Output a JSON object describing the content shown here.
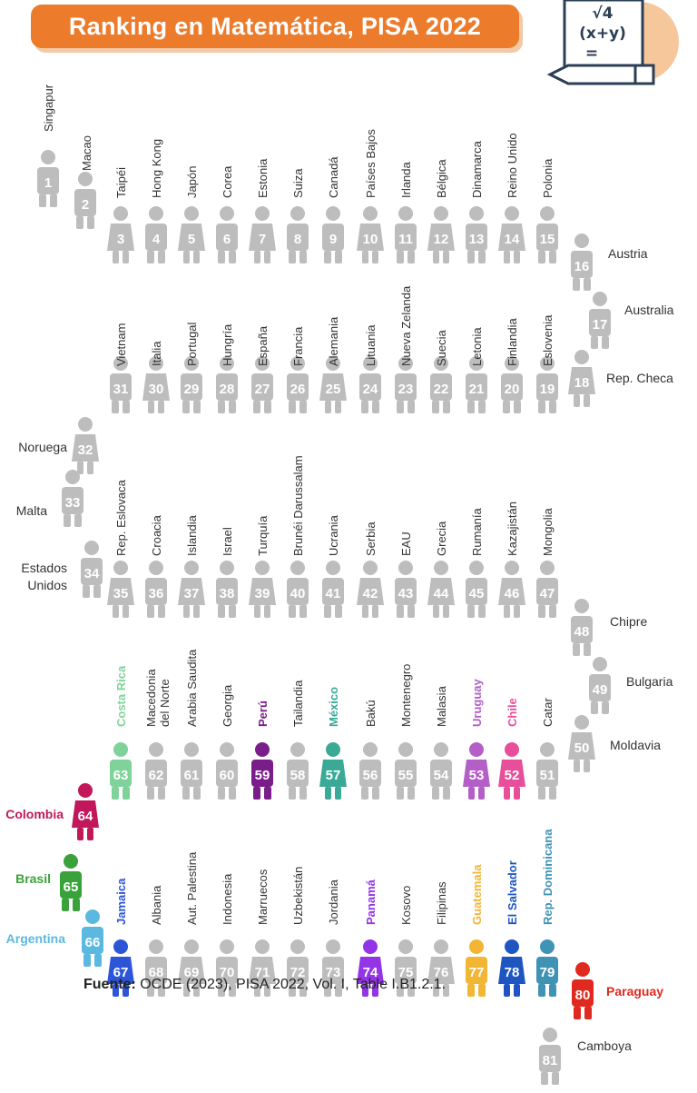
{
  "title": "Ranking en Matemática, PISA 2022",
  "footer": {
    "prefix": "Fuente:",
    "text": " OCDE (2023), PISA 2022, Vol. I, Table I.B1.2.1."
  },
  "colors": {
    "gray": "#bdbdbd",
    "banner": "#ec7b2c"
  },
  "icons": {
    "header": "math-formula-icon",
    "figure": "person-figure-icon"
  },
  "countries": [
    {
      "rank": 1,
      "name": "Singapur",
      "color": "#bdbdbd",
      "gender": "m"
    },
    {
      "rank": 2,
      "name": "Macao",
      "color": "#bdbdbd",
      "gender": "m"
    },
    {
      "rank": 3,
      "name": "Taipéi",
      "color": "#bdbdbd",
      "gender": "f"
    },
    {
      "rank": 4,
      "name": "Hong Kong",
      "color": "#bdbdbd",
      "gender": "m"
    },
    {
      "rank": 5,
      "name": "Japón",
      "color": "#bdbdbd",
      "gender": "f"
    },
    {
      "rank": 6,
      "name": "Corea",
      "color": "#bdbdbd",
      "gender": "m"
    },
    {
      "rank": 7,
      "name": "Estonia",
      "color": "#bdbdbd",
      "gender": "f"
    },
    {
      "rank": 8,
      "name": "Suiza",
      "color": "#bdbdbd",
      "gender": "m"
    },
    {
      "rank": 9,
      "name": "Canadá",
      "color": "#bdbdbd",
      "gender": "m"
    },
    {
      "rank": 10,
      "name": "Países Bajos",
      "color": "#bdbdbd",
      "gender": "f"
    },
    {
      "rank": 11,
      "name": "Irlanda",
      "color": "#bdbdbd",
      "gender": "m"
    },
    {
      "rank": 12,
      "name": "Bélgica",
      "color": "#bdbdbd",
      "gender": "f"
    },
    {
      "rank": 13,
      "name": "Dinamarca",
      "color": "#bdbdbd",
      "gender": "m"
    },
    {
      "rank": 14,
      "name": "Reino Unido",
      "color": "#bdbdbd",
      "gender": "f"
    },
    {
      "rank": 15,
      "name": "Polonia",
      "color": "#bdbdbd",
      "gender": "m"
    },
    {
      "rank": 16,
      "name": "Austria",
      "color": "#bdbdbd",
      "gender": "m"
    },
    {
      "rank": 17,
      "name": "Australia",
      "color": "#bdbdbd",
      "gender": "m"
    },
    {
      "rank": 18,
      "name": "Rep. Checa",
      "color": "#bdbdbd",
      "gender": "f"
    },
    {
      "rank": 19,
      "name": "Eslovenia",
      "color": "#bdbdbd",
      "gender": "m"
    },
    {
      "rank": 20,
      "name": "Finlandia",
      "color": "#bdbdbd",
      "gender": "m"
    },
    {
      "rank": 21,
      "name": "Letonia",
      "color": "#bdbdbd",
      "gender": "m"
    },
    {
      "rank": 22,
      "name": "Suecia",
      "color": "#bdbdbd",
      "gender": "m"
    },
    {
      "rank": 23,
      "name": "Nueva Zelanda",
      "color": "#bdbdbd",
      "gender": "m"
    },
    {
      "rank": 24,
      "name": "Lituania",
      "color": "#bdbdbd",
      "gender": "m"
    },
    {
      "rank": 25,
      "name": "Alemania",
      "color": "#bdbdbd",
      "gender": "f"
    },
    {
      "rank": 26,
      "name": "Francia",
      "color": "#bdbdbd",
      "gender": "m"
    },
    {
      "rank": 27,
      "name": "España",
      "color": "#bdbdbd",
      "gender": "m"
    },
    {
      "rank": 28,
      "name": "Hungría",
      "color": "#bdbdbd",
      "gender": "m"
    },
    {
      "rank": 29,
      "name": "Portugal",
      "color": "#bdbdbd",
      "gender": "m"
    },
    {
      "rank": 30,
      "name": "Italia",
      "color": "#bdbdbd",
      "gender": "f"
    },
    {
      "rank": 31,
      "name": "Vietnam",
      "color": "#bdbdbd",
      "gender": "m"
    },
    {
      "rank": 32,
      "name": "Noruega",
      "color": "#bdbdbd",
      "gender": "f"
    },
    {
      "rank": 33,
      "name": "Malta",
      "color": "#bdbdbd",
      "gender": "m"
    },
    {
      "rank": 34,
      "name": "Estados Unidos",
      "color": "#bdbdbd",
      "gender": "m"
    },
    {
      "rank": 35,
      "name": "Rep. Eslovaca",
      "color": "#bdbdbd",
      "gender": "f"
    },
    {
      "rank": 36,
      "name": "Croacia",
      "color": "#bdbdbd",
      "gender": "m"
    },
    {
      "rank": 37,
      "name": "Islandia",
      "color": "#bdbdbd",
      "gender": "f"
    },
    {
      "rank": 38,
      "name": "Israel",
      "color": "#bdbdbd",
      "gender": "m"
    },
    {
      "rank": 39,
      "name": "Turquía",
      "color": "#bdbdbd",
      "gender": "f"
    },
    {
      "rank": 40,
      "name": "Brunéi Darussalam",
      "color": "#bdbdbd",
      "gender": "m"
    },
    {
      "rank": 41,
      "name": "Ucrania",
      "color": "#bdbdbd",
      "gender": "m"
    },
    {
      "rank": 42,
      "name": "Serbia",
      "color": "#bdbdbd",
      "gender": "f"
    },
    {
      "rank": 43,
      "name": "EAU",
      "color": "#bdbdbd",
      "gender": "m"
    },
    {
      "rank": 44,
      "name": "Grecia",
      "color": "#bdbdbd",
      "gender": "f"
    },
    {
      "rank": 45,
      "name": "Rumanía",
      "color": "#bdbdbd",
      "gender": "m"
    },
    {
      "rank": 46,
      "name": "Kazajistán",
      "color": "#bdbdbd",
      "gender": "f"
    },
    {
      "rank": 47,
      "name": "Mongolia",
      "color": "#bdbdbd",
      "gender": "m"
    },
    {
      "rank": 48,
      "name": "Chipre",
      "color": "#bdbdbd",
      "gender": "m"
    },
    {
      "rank": 49,
      "name": "Bulgaria",
      "color": "#bdbdbd",
      "gender": "m"
    },
    {
      "rank": 50,
      "name": "Moldavia",
      "color": "#bdbdbd",
      "gender": "f"
    },
    {
      "rank": 51,
      "name": "Catar",
      "color": "#bdbdbd",
      "gender": "m"
    },
    {
      "rank": 52,
      "name": "Chile",
      "color": "#e84f9a",
      "gender": "f",
      "highlight": true
    },
    {
      "rank": 53,
      "name": "Uruguay",
      "color": "#b45fc8",
      "gender": "f",
      "highlight": true
    },
    {
      "rank": 54,
      "name": "Malasia",
      "color": "#bdbdbd",
      "gender": "m"
    },
    {
      "rank": 55,
      "name": "Montenegro",
      "color": "#bdbdbd",
      "gender": "m"
    },
    {
      "rank": 56,
      "name": "Bakú",
      "color": "#bdbdbd",
      "gender": "m"
    },
    {
      "rank": 57,
      "name": "México",
      "color": "#3aa996",
      "gender": "f",
      "highlight": true
    },
    {
      "rank": 58,
      "name": "Tailandia",
      "color": "#bdbdbd",
      "gender": "m"
    },
    {
      "rank": 59,
      "name": "Perú",
      "color": "#7a1d8a",
      "gender": "m",
      "highlight": true
    },
    {
      "rank": 60,
      "name": "Georgia",
      "color": "#bdbdbd",
      "gender": "m"
    },
    {
      "rank": 61,
      "name": "Arabia Saudita",
      "color": "#bdbdbd",
      "gender": "m"
    },
    {
      "rank": 62,
      "name": "Macedonia del Norte",
      "color": "#bdbdbd",
      "gender": "m"
    },
    {
      "rank": 63,
      "name": "Costa Rica",
      "color": "#7fd39a",
      "gender": "m",
      "highlight": true
    },
    {
      "rank": 64,
      "name": "Colombia",
      "color": "#c2185b",
      "gender": "f",
      "highlight": true
    },
    {
      "rank": 65,
      "name": "Brasil",
      "color": "#3aa23a",
      "gender": "m",
      "highlight": true
    },
    {
      "rank": 66,
      "name": "Argentina",
      "color": "#5bb8e0",
      "gender": "m",
      "highlight": true
    },
    {
      "rank": 67,
      "name": "Jamaica",
      "color": "#2d55d8",
      "gender": "f",
      "highlight": true
    },
    {
      "rank": 68,
      "name": "Albania",
      "color": "#bdbdbd",
      "gender": "m"
    },
    {
      "rank": 69,
      "name": "Aut. Palestina",
      "color": "#bdbdbd",
      "gender": "f"
    },
    {
      "rank": 70,
      "name": "Indonesia",
      "color": "#bdbdbd",
      "gender": "m"
    },
    {
      "rank": 71,
      "name": "Marruecos",
      "color": "#bdbdbd",
      "gender": "f"
    },
    {
      "rank": 72,
      "name": "Uzbekistán",
      "color": "#bdbdbd",
      "gender": "m"
    },
    {
      "rank": 73,
      "name": "Jordania",
      "color": "#bdbdbd",
      "gender": "m"
    },
    {
      "rank": 74,
      "name": "Panamá",
      "color": "#9334e6",
      "gender": "f",
      "highlight": true
    },
    {
      "rank": 75,
      "name": "Kosovo",
      "color": "#bdbdbd",
      "gender": "m"
    },
    {
      "rank": 76,
      "name": "Filipinas",
      "color": "#bdbdbd",
      "gender": "f"
    },
    {
      "rank": 77,
      "name": "Guatemala",
      "color": "#f2b534",
      "gender": "m",
      "highlight": true
    },
    {
      "rank": 78,
      "name": "El Salvador",
      "color": "#1f55c1",
      "gender": "f",
      "highlight": true
    },
    {
      "rank": 79,
      "name": "Rep. Dominicana",
      "color": "#3f93b5",
      "gender": "m",
      "highlight": true
    },
    {
      "rank": 80,
      "name": "Paraguay",
      "color": "#e02a1f",
      "gender": "m",
      "highlight": true
    },
    {
      "rank": 81,
      "name": "Camboya",
      "color": "#bdbdbd",
      "gender": "m"
    }
  ]
}
